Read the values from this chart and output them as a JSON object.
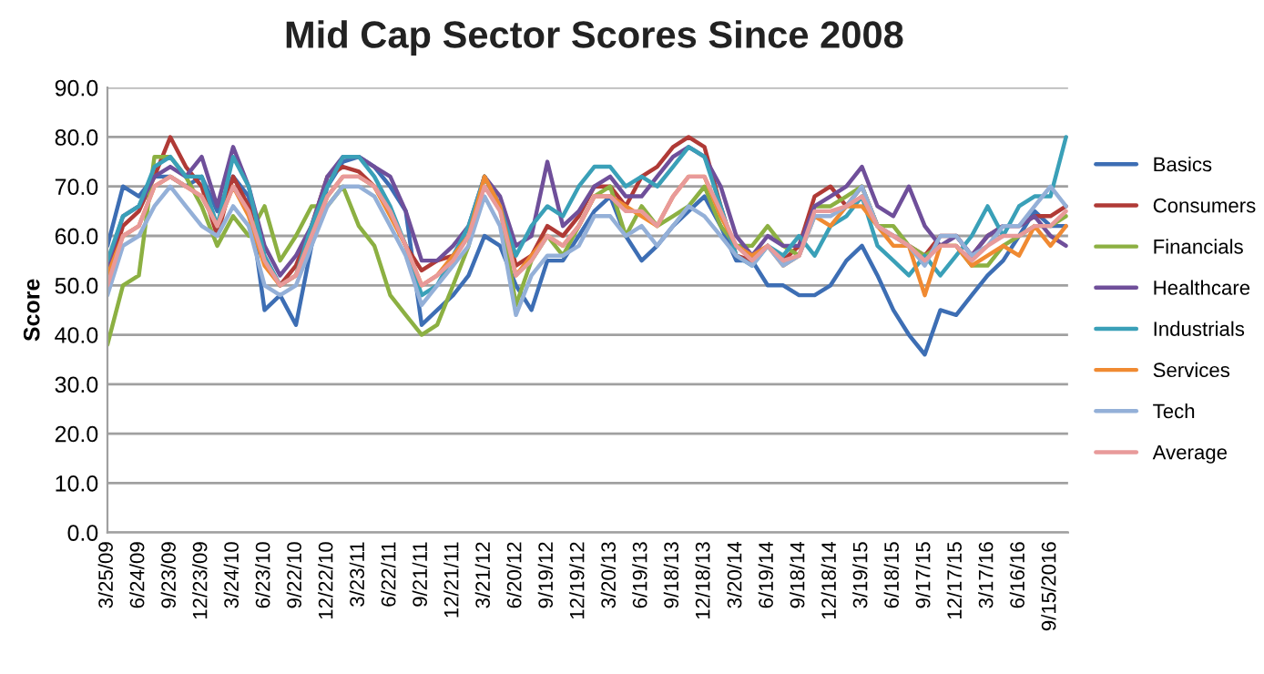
{
  "chart_data": {
    "type": "line",
    "title": "Mid Cap Sector Scores Since 2008",
    "ylabel": "Score",
    "x": [
      "2009-03-25",
      "2009-05-09",
      "2009-06-24",
      "2009-08-08",
      "2009-09-23",
      "2009-11-07",
      "2009-12-23",
      "2010-02-06",
      "2010-03-24",
      "2010-05-08",
      "2010-06-23",
      "2010-08-07",
      "2010-09-22",
      "2010-11-06",
      "2010-12-22",
      "2011-02-05",
      "2011-03-23",
      "2011-05-07",
      "2011-06-22",
      "2011-08-06",
      "2011-09-21",
      "2011-11-05",
      "2011-12-21",
      "2012-02-04",
      "2012-03-21",
      "2012-05-05",
      "2012-06-20",
      "2012-08-04",
      "2012-09-19",
      "2012-11-03",
      "2012-12-19",
      "2013-02-02",
      "2013-03-20",
      "2013-05-04",
      "2013-06-19",
      "2013-08-03",
      "2013-09-18",
      "2013-11-02",
      "2013-12-18",
      "2014-02-03",
      "2014-03-20",
      "2014-05-05",
      "2014-06-19",
      "2014-08-03",
      "2014-09-18",
      "2014-11-02",
      "2014-12-18",
      "2015-02-02",
      "2015-03-19",
      "2015-05-03",
      "2015-06-18",
      "2015-08-02",
      "2015-09-17",
      "2015-11-01",
      "2015-12-17",
      "2016-01-31",
      "2016-03-17",
      "2016-05-01",
      "2016-06-16",
      "2016-07-31",
      "2016-09-15",
      "2016-10-30"
    ],
    "series": [
      {
        "name": "Basics",
        "color": "#3d6eb4",
        "values": [
          58,
          70,
          68,
          72,
          72,
          70,
          72,
          65,
          72,
          68,
          45,
          48,
          42,
          58,
          70,
          75,
          76,
          74,
          70,
          65,
          42,
          45,
          48,
          52,
          60,
          58,
          50,
          45,
          55,
          55,
          60,
          65,
          68,
          60,
          55,
          58,
          62,
          65,
          68,
          62,
          55,
          55,
          50,
          50,
          48,
          48,
          50,
          55,
          58,
          52,
          45,
          40,
          36,
          45,
          44,
          48,
          52,
          55,
          60,
          65,
          62,
          62
        ]
      },
      {
        "name": "Consumers",
        "color": "#b03a36",
        "values": [
          52,
          62,
          65,
          72,
          80,
          74,
          70,
          60,
          72,
          66,
          55,
          50,
          54,
          62,
          72,
          74,
          73,
          70,
          65,
          58,
          53,
          55,
          56,
          60,
          72,
          66,
          54,
          56,
          62,
          60,
          64,
          70,
          70,
          66,
          72,
          74,
          78,
          80,
          78,
          66,
          56,
          55,
          58,
          55,
          58,
          68,
          70,
          66,
          70,
          62,
          60,
          58,
          56,
          60,
          60,
          56,
          60,
          62,
          62,
          64,
          64,
          66
        ]
      },
      {
        "name": "Financials",
        "color": "#8cb042",
        "values": [
          38,
          50,
          52,
          76,
          76,
          72,
          66,
          58,
          64,
          60,
          66,
          55,
          60,
          66,
          66,
          70,
          62,
          58,
          48,
          44,
          40,
          42,
          50,
          58,
          72,
          66,
          46,
          55,
          60,
          56,
          62,
          68,
          70,
          60,
          66,
          62,
          64,
          66,
          70,
          62,
          58,
          58,
          62,
          58,
          56,
          66,
          66,
          68,
          70,
          62,
          62,
          58,
          56,
          58,
          58,
          54,
          54,
          58,
          60,
          62,
          62,
          64
        ]
      },
      {
        "name": "Healthcare",
        "color": "#6f4f9a",
        "values": [
          54,
          64,
          66,
          72,
          74,
          72,
          76,
          66,
          78,
          70,
          58,
          52,
          56,
          62,
          72,
          76,
          76,
          74,
          72,
          65,
          55,
          55,
          58,
          62,
          72,
          68,
          58,
          60,
          75,
          62,
          65,
          70,
          72,
          68,
          68,
          72,
          76,
          78,
          76,
          70,
          60,
          56,
          60,
          58,
          58,
          66,
          68,
          70,
          74,
          66,
          64,
          70,
          62,
          58,
          60,
          56,
          60,
          62,
          62,
          64,
          60,
          58
        ]
      },
      {
        "name": "Industrials",
        "color": "#3aa0b8",
        "values": [
          55,
          64,
          66,
          74,
          76,
          72,
          72,
          62,
          76,
          70,
          56,
          50,
          52,
          62,
          70,
          76,
          76,
          72,
          66,
          58,
          48,
          50,
          56,
          62,
          72,
          66,
          56,
          62,
          66,
          64,
          70,
          74,
          74,
          70,
          72,
          70,
          74,
          78,
          76,
          66,
          56,
          54,
          58,
          56,
          60,
          56,
          62,
          64,
          68,
          58,
          55,
          52,
          56,
          52,
          56,
          60,
          66,
          60,
          66,
          68,
          68,
          80
        ]
      },
      {
        "name": "Services",
        "color": "#f08a32",
        "values": [
          52,
          60,
          62,
          70,
          72,
          70,
          68,
          62,
          70,
          64,
          54,
          50,
          52,
          60,
          68,
          72,
          72,
          70,
          64,
          58,
          50,
          52,
          56,
          60,
          72,
          66,
          52,
          56,
          60,
          58,
          62,
          68,
          68,
          66,
          64,
          62,
          68,
          72,
          72,
          64,
          58,
          56,
          58,
          54,
          56,
          64,
          62,
          66,
          66,
          62,
          58,
          58,
          48,
          58,
          58,
          54,
          56,
          58,
          56,
          62,
          58,
          62
        ]
      },
      {
        "name": "Tech",
        "color": "#94b0d8",
        "values": [
          48,
          58,
          60,
          66,
          70,
          66,
          62,
          60,
          66,
          62,
          50,
          48,
          50,
          58,
          66,
          70,
          70,
          68,
          62,
          56,
          46,
          50,
          54,
          58,
          68,
          62,
          44,
          52,
          56,
          56,
          58,
          64,
          64,
          60,
          62,
          58,
          62,
          66,
          64,
          60,
          56,
          54,
          58,
          54,
          56,
          64,
          64,
          66,
          70,
          62,
          60,
          58,
          54,
          60,
          60,
          56,
          58,
          62,
          62,
          66,
          70,
          66
        ]
      },
      {
        "name": "Average",
        "color": "#e89a9a",
        "values": [
          50,
          60,
          62,
          70,
          72,
          70,
          68,
          62,
          70,
          65,
          55,
          50,
          52,
          60,
          68,
          72,
          72,
          70,
          65,
          58,
          50,
          52,
          55,
          60,
          70,
          65,
          52,
          55,
          60,
          58,
          62,
          68,
          68,
          65,
          65,
          62,
          68,
          72,
          72,
          65,
          58,
          55,
          58,
          55,
          56,
          65,
          65,
          66,
          68,
          62,
          60,
          58,
          55,
          58,
          58,
          55,
          58,
          60,
          60,
          62,
          62,
          65
        ]
      }
    ],
    "xlim": [
      "2009-03-25",
      "2016-11-05"
    ],
    "xticks": [
      {
        "value": "2009-03-25",
        "label": "3/25/09"
      },
      {
        "value": "2009-06-24",
        "label": "6/24/09"
      },
      {
        "value": "2009-09-23",
        "label": "9/23/09"
      },
      {
        "value": "2009-12-23",
        "label": "12/23/09"
      },
      {
        "value": "2010-03-24",
        "label": "3/24/10"
      },
      {
        "value": "2010-06-23",
        "label": "6/23/10"
      },
      {
        "value": "2010-09-22",
        "label": "9/22/10"
      },
      {
        "value": "2010-12-22",
        "label": "12/22/10"
      },
      {
        "value": "2011-03-23",
        "label": "3/23/11"
      },
      {
        "value": "2011-06-22",
        "label": "6/22/11"
      },
      {
        "value": "2011-09-21",
        "label": "9/21/11"
      },
      {
        "value": "2011-12-21",
        "label": "12/21/11"
      },
      {
        "value": "2012-03-21",
        "label": "3/21/12"
      },
      {
        "value": "2012-06-20",
        "label": "6/20/12"
      },
      {
        "value": "2012-09-19",
        "label": "9/19/12"
      },
      {
        "value": "2012-12-19",
        "label": "12/19/12"
      },
      {
        "value": "2013-03-20",
        "label": "3/20/13"
      },
      {
        "value": "2013-06-19",
        "label": "6/19/13"
      },
      {
        "value": "2013-09-18",
        "label": "9/18/13"
      },
      {
        "value": "2013-12-18",
        "label": "12/18/13"
      },
      {
        "value": "2014-03-20",
        "label": "3/20/14"
      },
      {
        "value": "2014-06-19",
        "label": "6/19/14"
      },
      {
        "value": "2014-09-18",
        "label": "9/18/14"
      },
      {
        "value": "2014-12-18",
        "label": "12/18/14"
      },
      {
        "value": "2015-03-19",
        "label": "3/19/15"
      },
      {
        "value": "2015-06-18",
        "label": "6/18/15"
      },
      {
        "value": "2015-09-17",
        "label": "9/17/15"
      },
      {
        "value": "2015-12-17",
        "label": "12/17/15"
      },
      {
        "value": "2016-03-17",
        "label": "3/17/16"
      },
      {
        "value": "2016-06-16",
        "label": "6/16/16"
      },
      {
        "value": "2016-09-15",
        "label": "9/15/2016"
      }
    ],
    "ylim": [
      0,
      90
    ],
    "yticks": [
      {
        "value": 0,
        "label": "0.0"
      },
      {
        "value": 10,
        "label": "10.0"
      },
      {
        "value": 20,
        "label": "20.0"
      },
      {
        "value": 30,
        "label": "30.0"
      },
      {
        "value": 40,
        "label": "40.0"
      },
      {
        "value": 50,
        "label": "50.0"
      },
      {
        "value": 60,
        "label": "60.0"
      },
      {
        "value": 70,
        "label": "70.0"
      },
      {
        "value": 80,
        "label": "80.0"
      },
      {
        "value": 90,
        "label": "90.0"
      }
    ],
    "grid": "y",
    "legend": "right",
    "marker": "none",
    "line_style": "solid"
  }
}
